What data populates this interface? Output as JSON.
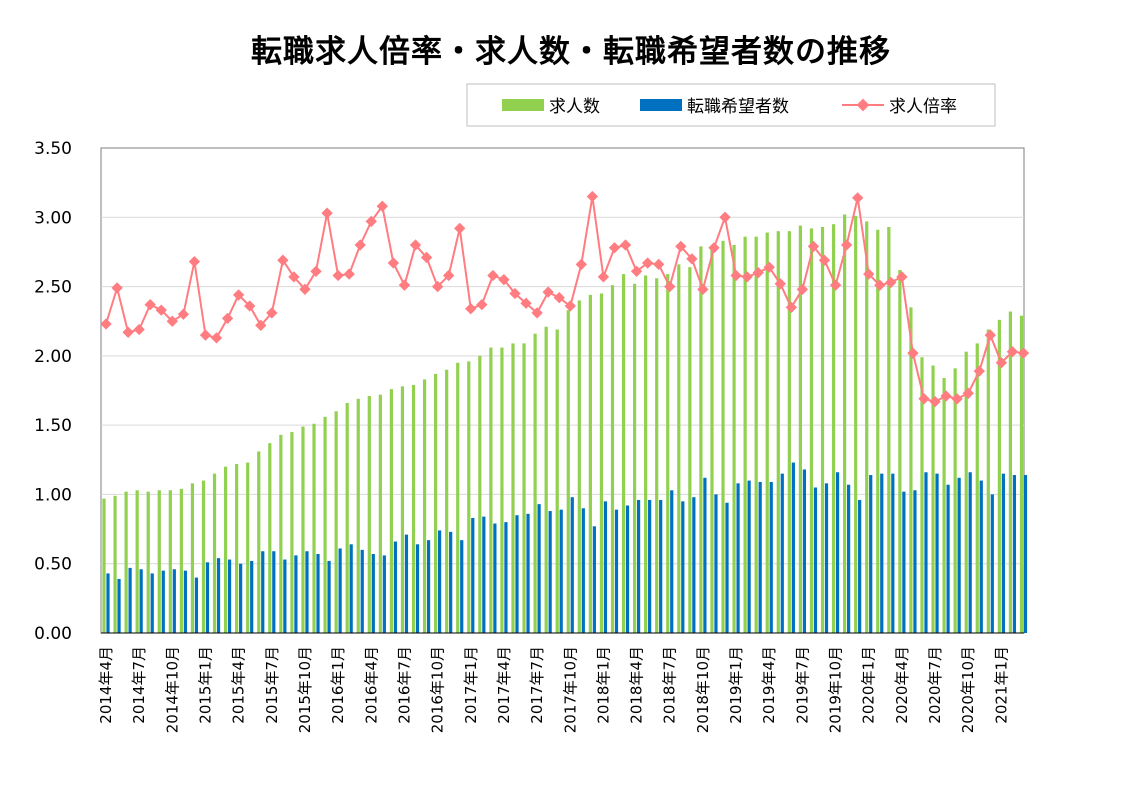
{
  "chart_data": {
    "type": "bar+line",
    "title": "転職求人倍率・求人数・転職希望者数の推移",
    "ylim": [
      0,
      3.5
    ],
    "yticks": [
      "0.00",
      "0.50",
      "1.00",
      "1.50",
      "2.00",
      "2.50",
      "3.00",
      "3.50"
    ],
    "ytick_values": [
      0,
      0.5,
      1.0,
      1.5,
      2.0,
      2.5,
      3.0,
      3.5
    ],
    "grid": true,
    "legend_position": "top-right",
    "x_tick_labels": [
      "2014年4月",
      "2014年7月",
      "2014年10月",
      "2015年1月",
      "2015年4月",
      "2015年7月",
      "2015年10月",
      "2016年1月",
      "2016年4月",
      "2016年7月",
      "2016年10月",
      "2017年1月",
      "2017年4月",
      "2017年7月",
      "2017年10月",
      "2018年1月",
      "2018年4月",
      "2018年7月",
      "2018年10月",
      "2019年1月",
      "2019年4月",
      "2019年7月",
      "2019年10月",
      "2020年1月",
      "2020年4月",
      "2020年7月",
      "2020年10月",
      "2021年1月"
    ],
    "x_tick_every": 3,
    "series": [
      {
        "name": "求人数",
        "type": "bar",
        "color": "#92d050",
        "values": [
          0.97,
          0.99,
          1.02,
          1.03,
          1.02,
          1.03,
          1.03,
          1.04,
          1.08,
          1.1,
          1.15,
          1.2,
          1.22,
          1.23,
          1.31,
          1.37,
          1.43,
          1.45,
          1.49,
          1.51,
          1.56,
          1.6,
          1.66,
          1.69,
          1.71,
          1.72,
          1.76,
          1.78,
          1.79,
          1.83,
          1.87,
          1.9,
          1.95,
          1.96,
          2.0,
          2.06,
          2.06,
          2.09,
          2.09,
          2.16,
          2.21,
          2.19,
          2.33,
          2.4,
          2.44,
          2.45,
          2.51,
          2.59,
          2.52,
          2.58,
          2.56,
          2.59,
          2.66,
          2.64,
          2.79,
          2.77,
          2.83,
          2.8,
          2.86,
          2.86,
          2.89,
          2.9,
          2.9,
          2.94,
          2.92,
          2.93,
          2.95,
          3.02,
          3.01,
          2.97,
          2.91,
          2.93,
          2.62,
          2.35,
          1.99,
          1.93,
          1.84,
          1.91,
          2.03,
          2.09,
          2.19,
          2.26,
          2.32,
          2.29
        ]
      },
      {
        "name": "転職希望者数",
        "type": "bar",
        "color": "#0070c0",
        "values": [
          0.43,
          0.39,
          0.47,
          0.46,
          0.43,
          0.45,
          0.46,
          0.45,
          0.4,
          0.51,
          0.54,
          0.53,
          0.5,
          0.52,
          0.59,
          0.59,
          0.53,
          0.56,
          0.59,
          0.57,
          0.52,
          0.61,
          0.64,
          0.6,
          0.57,
          0.56,
          0.66,
          0.71,
          0.64,
          0.67,
          0.74,
          0.73,
          0.67,
          0.83,
          0.84,
          0.79,
          0.8,
          0.85,
          0.86,
          0.93,
          0.88,
          0.89,
          0.98,
          0.9,
          0.77,
          0.95,
          0.89,
          0.92,
          0.96,
          0.96,
          0.96,
          1.03,
          0.95,
          0.98,
          1.12,
          1.0,
          0.94,
          1.08,
          1.1,
          1.09,
          1.09,
          1.15,
          1.23,
          1.18,
          1.05,
          1.08,
          1.16,
          1.07,
          0.96,
          1.14,
          1.15,
          1.15,
          1.02,
          1.03,
          1.16,
          1.15,
          1.07,
          1.12,
          1.16,
          1.1,
          1.0,
          1.15,
          1.14,
          1.14
        ]
      },
      {
        "name": "求人倍率",
        "type": "line",
        "color": "#ff7c80",
        "values": [
          2.23,
          2.49,
          2.17,
          2.19,
          2.37,
          2.33,
          2.25,
          2.3,
          2.68,
          2.15,
          2.13,
          2.27,
          2.44,
          2.36,
          2.22,
          2.31,
          2.69,
          2.57,
          2.48,
          2.61,
          3.03,
          2.58,
          2.59,
          2.8,
          2.97,
          3.08,
          2.67,
          2.51,
          2.8,
          2.71,
          2.5,
          2.58,
          2.92,
          2.34,
          2.37,
          2.58,
          2.55,
          2.45,
          2.38,
          2.31,
          2.46,
          2.42,
          2.36,
          2.66,
          3.15,
          2.57,
          2.78,
          2.8,
          2.61,
          2.67,
          2.66,
          2.5,
          2.79,
          2.7,
          2.48,
          2.78,
          3.0,
          2.58,
          2.57,
          2.6,
          2.64,
          2.52,
          2.35,
          2.48,
          2.79,
          2.69,
          2.51,
          2.8,
          3.14,
          2.59,
          2.51,
          2.53,
          2.57,
          2.02,
          1.69,
          1.67,
          1.71,
          1.69,
          1.73,
          1.89,
          2.15,
          1.95,
          2.03,
          2.02
        ]
      }
    ]
  }
}
